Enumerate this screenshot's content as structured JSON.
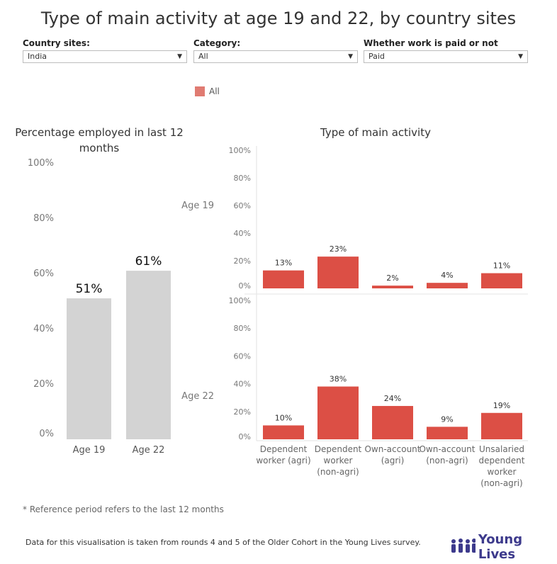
{
  "title": "Type of main activity at age 19 and 22, by country sites",
  "filters": [
    {
      "label": "Country sites:",
      "value": "India"
    },
    {
      "label": "Category:",
      "value": "All"
    },
    {
      "label": "Whether work is paid or not",
      "value": "Paid"
    }
  ],
  "legend": {
    "label": "All",
    "color": "#e07b72"
  },
  "colors": {
    "employed_bar": "#d3d3d3",
    "activity_bar": "#dc4f45"
  },
  "chart_data": [
    {
      "type": "bar",
      "title": "Percentage employed in last 12 months",
      "categories": [
        "Age 19",
        "Age 22"
      ],
      "values": [
        51,
        61
      ],
      "data_labels": [
        "51%",
        "61%"
      ],
      "ylim": [
        0,
        100
      ],
      "yticks": [
        "0%",
        "20%",
        "40%",
        "60%",
        "80%",
        "100%"
      ],
      "grid": false
    },
    {
      "type": "bar",
      "title": "Type of main activity",
      "categories": [
        "Dependent worker (agri)",
        "Dependent worker (non-agri)",
        "Own-account (agri)",
        "Own-account (non-agri)",
        "Unsalaried dependent worker (non-agri)"
      ],
      "category_lines": [
        [
          "Dependent",
          "worker (agri)"
        ],
        [
          "Dependent",
          "worker",
          "(non-agri)"
        ],
        [
          "Own-account",
          "(agri)"
        ],
        [
          "Own-account",
          "(non-agri)"
        ],
        [
          "Unsalaried",
          "dependent",
          "worker",
          "(non-agri)"
        ]
      ],
      "ylim": [
        0,
        100
      ],
      "yticks": [
        "0%",
        "20%",
        "40%",
        "60%",
        "80%",
        "100%"
      ],
      "panels": [
        {
          "name": "Age 19",
          "values": [
            13,
            23,
            2,
            4,
            11
          ],
          "data_labels": [
            "13%",
            "23%",
            "2%",
            "4%",
            "11%"
          ]
        },
        {
          "name": "Age 22",
          "values": [
            10,
            38,
            24,
            9,
            19
          ],
          "data_labels": [
            "10%",
            "38%",
            "24%",
            "9%",
            "19%"
          ]
        }
      ]
    }
  ],
  "note": "* Reference period refers to the last 12 months",
  "source": "Data for this visualisation is taken from rounds 4 and 5 of the Older Cohort in the Young Lives survey.",
  "logo_text": "Young Lives"
}
